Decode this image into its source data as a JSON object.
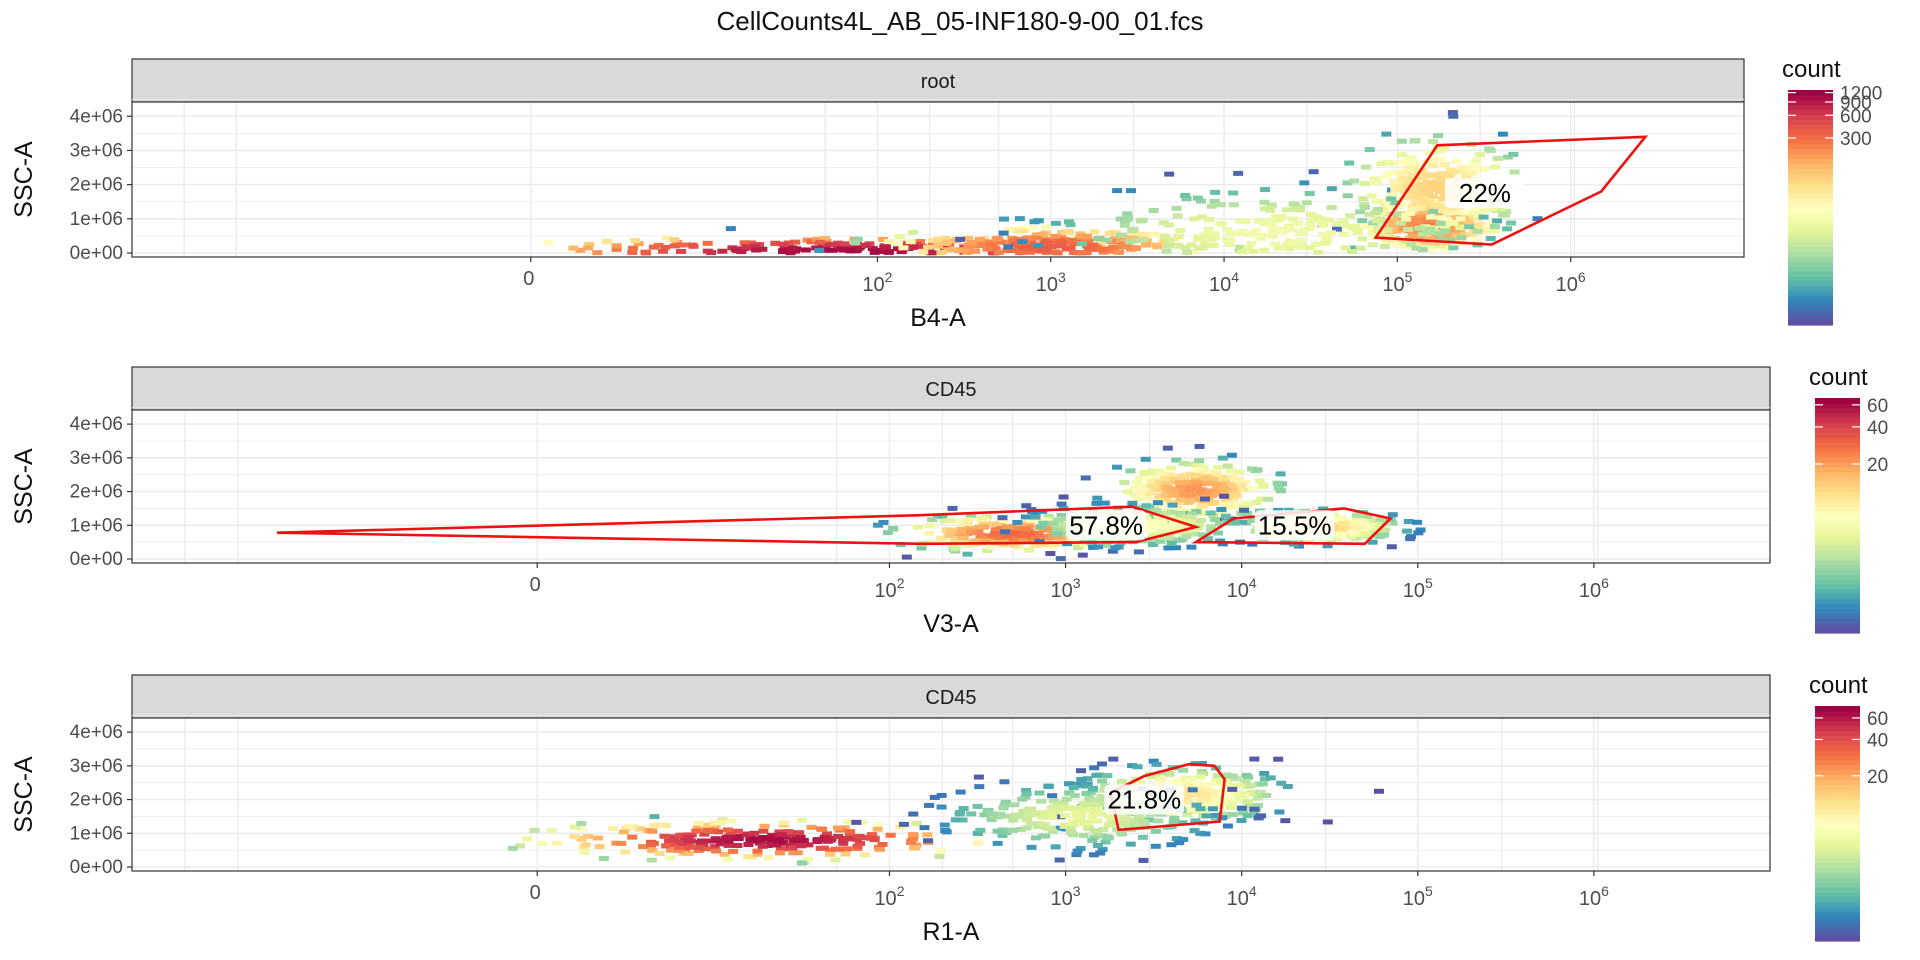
{
  "title": "CellCounts4L_AB_05-INF180-9-00_01.fcs",
  "colors": {
    "strip_fill": "#d9d9d9",
    "panel_border": "#333333",
    "gate": "#ee1111",
    "grid": "#ebebeb",
    "palette": [
      "#5e4fa2",
      "#3288bd",
      "#66c2a5",
      "#abdda4",
      "#e6f598",
      "#ffffbf",
      "#fee08b",
      "#fdae61",
      "#f46d43",
      "#d53e4f",
      "#9e0142"
    ]
  },
  "chart_data": [
    {
      "type": "heatmap",
      "strip": "root",
      "xlabel": "B4-A",
      "ylabel": "SSC-A",
      "x_ticks": [
        {
          "label": "0",
          "value": 0
        },
        {
          "label": "10^2",
          "value": 100
        },
        {
          "label": "10^3",
          "value": 1000
        },
        {
          "label": "10^4",
          "value": 10000
        },
        {
          "label": "10^5",
          "value": 100000
        },
        {
          "label": "10^6",
          "value": 1000000
        }
      ],
      "y_ticks": [
        "0e+00",
        "1e+06",
        "2e+06",
        "3e+06",
        "4e+06"
      ],
      "ylim": [
        0,
        4300000
      ],
      "legend": {
        "title": "count",
        "max": 1300,
        "ticks": [
          300,
          600,
          900,
          1200
        ]
      },
      "density_clusters": [
        {
          "x": 60,
          "y": 50000,
          "sx": 0.75,
          "sy": 180000,
          "peak": 1200
        },
        {
          "x": 1000,
          "y": 180000,
          "sx": 0.4,
          "sy": 250000,
          "peak": 400
        },
        {
          "x": 150000,
          "y": 800000,
          "sx": 0.18,
          "sy": 350000,
          "peak": 250
        },
        {
          "x": 170000,
          "y": 1900000,
          "sx": 0.22,
          "sy": 650000,
          "peak": 90
        },
        {
          "x": 20000,
          "y": 600000,
          "sx": 0.6,
          "sy": 600000,
          "peak": 25
        }
      ],
      "gates": [
        {
          "label": "22%",
          "label_at": {
            "x": 320000,
            "y": 1750000
          },
          "polygon": [
            [
              75000,
              450000
            ],
            [
              170000,
              3150000
            ],
            [
              2700000,
              3400000
            ],
            [
              1500000,
              1800000
            ],
            [
              350000,
              250000
            ]
          ]
        }
      ]
    },
    {
      "type": "heatmap",
      "strip": "CD45",
      "xlabel": "V3-A",
      "ylabel": "SSC-A",
      "x_ticks": [
        {
          "label": "0",
          "value": 0
        },
        {
          "label": "10^2",
          "value": 100
        },
        {
          "label": "10^3",
          "value": 1000
        },
        {
          "label": "10^4",
          "value": 10000
        },
        {
          "label": "10^5",
          "value": 100000
        },
        {
          "label": "10^6",
          "value": 1000000
        }
      ],
      "y_ticks": [
        "0e+00",
        "1e+06",
        "2e+06",
        "3e+06",
        "4e+06"
      ],
      "ylim": [
        0,
        4300000
      ],
      "legend": {
        "title": "count",
        "max": 68,
        "ticks": [
          20,
          40,
          60
        ]
      },
      "density_clusters": [
        {
          "x": 500,
          "y": 750000,
          "sx": 0.3,
          "sy": 250000,
          "peak": 30
        },
        {
          "x": 5500,
          "y": 2050000,
          "sx": 0.22,
          "sy": 400000,
          "peak": 22
        },
        {
          "x": 28000,
          "y": 950000,
          "sx": 0.22,
          "sy": 230000,
          "peak": 14
        },
        {
          "x": 2500,
          "y": 1000000,
          "sx": 0.3,
          "sy": 300000,
          "peak": 8
        }
      ],
      "gates": [
        {
          "label": "57.8%",
          "label_at": {
            "x": 1700,
            "y": 1000000
          },
          "polygon": [
            [
              -30,
              780000
            ],
            [
              150,
              1300000
            ],
            [
              2400,
              1550000
            ],
            [
              5500,
              950000
            ],
            [
              2500,
              500000
            ],
            [
              150,
              450000
            ]
          ]
        },
        {
          "label": "15.5%",
          "label_at": {
            "x": 20000,
            "y": 1000000
          },
          "polygon": [
            [
              5500,
              500000
            ],
            [
              9000,
              1200000
            ],
            [
              38000,
              1500000
            ],
            [
              70000,
              1200000
            ],
            [
              50000,
              450000
            ]
          ]
        }
      ]
    },
    {
      "type": "heatmap",
      "strip": "CD45",
      "xlabel": "R1-A",
      "ylabel": "SSC-A",
      "x_ticks": [
        {
          "label": "0",
          "value": 0
        },
        {
          "label": "10^2",
          "value": 100
        },
        {
          "label": "10^3",
          "value": 1000
        },
        {
          "label": "10^4",
          "value": 10000
        },
        {
          "label": "10^5",
          "value": 100000
        },
        {
          "label": "10^6",
          "value": 1000000
        }
      ],
      "y_ticks": [
        "0e+00",
        "1e+06",
        "2e+06",
        "3e+06",
        "4e+06"
      ],
      "ylim": [
        0,
        4300000
      ],
      "legend": {
        "title": "count",
        "max": 75,
        "ticks": [
          20,
          40,
          60
        ]
      },
      "density_clusters": [
        {
          "x": 20,
          "y": 800000,
          "sx": 0.6,
          "sy": 260000,
          "peak": 70
        },
        {
          "x": 4500,
          "y": 2150000,
          "sx": 0.28,
          "sy": 400000,
          "peak": 12
        },
        {
          "x": 1200,
          "y": 1500000,
          "sx": 0.4,
          "sy": 500000,
          "peak": 5
        }
      ],
      "gates": [
        {
          "label": "21.8%",
          "label_at": {
            "x": 2800,
            "y": 2000000
          },
          "polygon": [
            [
              1800,
              2200000
            ],
            [
              2800,
              2700000
            ],
            [
              5000,
              3050000
            ],
            [
              7000,
              3000000
            ],
            [
              8000,
              2600000
            ],
            [
              7500,
              1350000
            ],
            [
              2000,
              1100000
            ]
          ]
        }
      ]
    }
  ]
}
